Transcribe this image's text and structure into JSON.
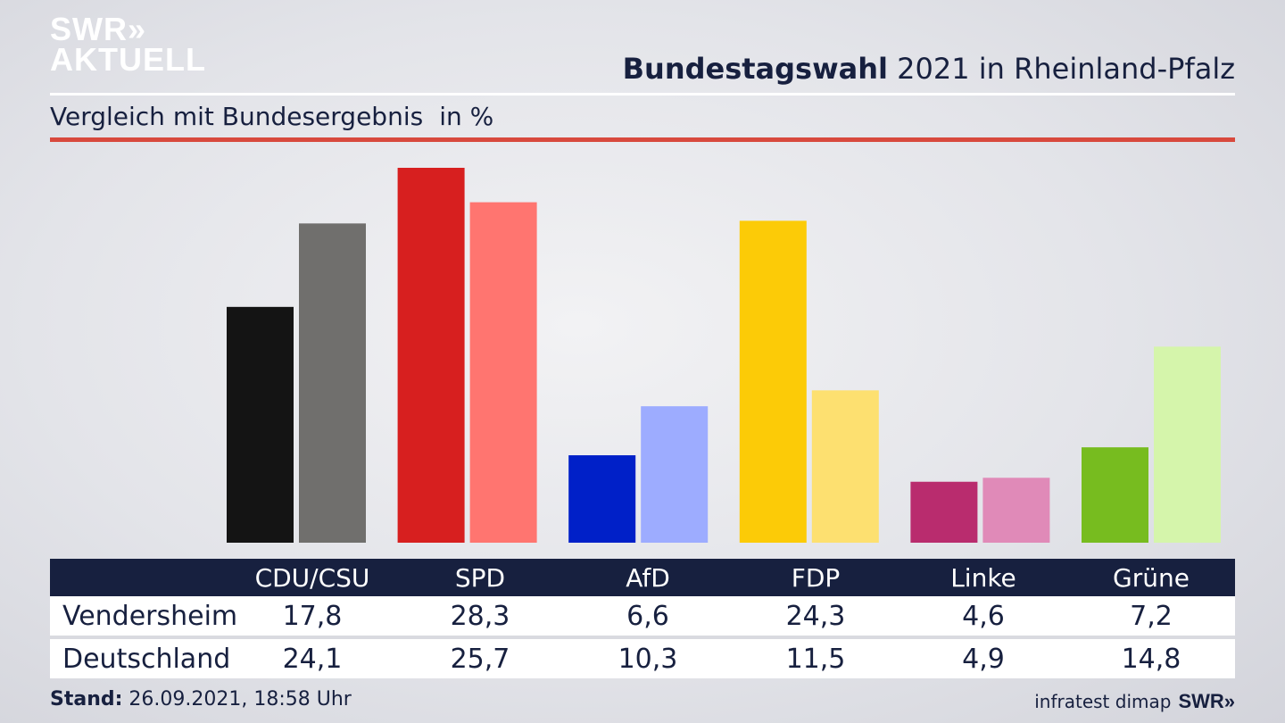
{
  "logo": {
    "line1": "SWR»",
    "line2": "AKTUELL"
  },
  "header": {
    "title_bold": "Bundestagswahl",
    "title_rest": "2021 in Rheinland-Pfalz"
  },
  "subheader": {
    "text": "Vergleich mit Bundesergebnis",
    "unit": "in %"
  },
  "colors": {
    "navy": "#17203f",
    "rule": "#d8493d"
  },
  "chart_data": {
    "type": "bar",
    "categories": [
      "CDU/CSU",
      "SPD",
      "AfD",
      "FDP",
      "Linke",
      "Grüne"
    ],
    "series": [
      {
        "name": "Vendersheim",
        "values": [
          17.8,
          28.3,
          6.6,
          24.3,
          4.6,
          7.2
        ],
        "colors": [
          "#141414",
          "#d71f1f",
          "#0020c8",
          "#fccb07",
          "#b92c6e",
          "#77bc1f"
        ]
      },
      {
        "name": "Deutschland",
        "values": [
          24.1,
          25.7,
          10.3,
          11.5,
          4.9,
          14.8
        ],
        "colors": [
          "#706f6d",
          "#ff7570",
          "#9dacff",
          "#fde070",
          "#e08ab8",
          "#d5f5ab"
        ]
      }
    ],
    "ylim": [
      0,
      28.3
    ],
    "grid": false,
    "legend": "table-below"
  },
  "footer": {
    "stand_label": "Stand:",
    "stand_value": "26.09.2021, 18:58 Uhr",
    "source": "infratest dimap",
    "brand": "SWR»"
  }
}
